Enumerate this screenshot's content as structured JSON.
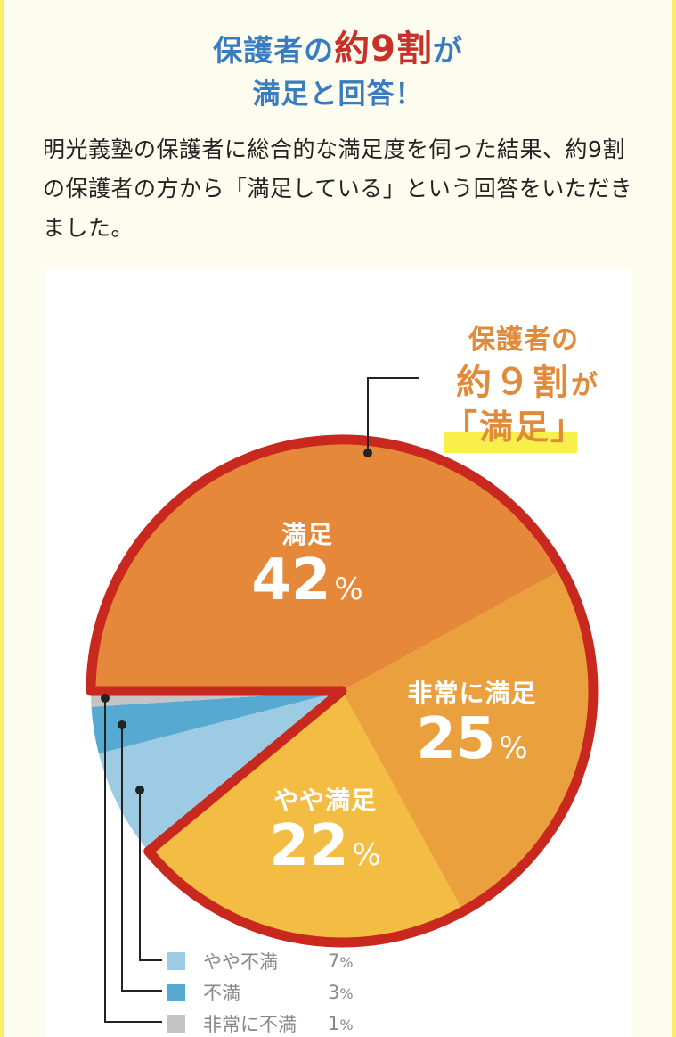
{
  "header": {
    "line1_prefix": "保護者の",
    "line1_accent": "約9割",
    "line1_suffix": "が",
    "line2": "満足と回答！"
  },
  "lead": {
    "text": "明光義塾の保護者に総合的な満足度を伺った結果、約9割の保護者の方から「満足している」という回答をいただきました。"
  },
  "callout": {
    "line1": "保護者の",
    "line2_main": "約９割",
    "line2_suffix": "が",
    "line3": "「満足」"
  },
  "colors": {
    "headline_blue": "#3a7cc0",
    "headline_red": "#c8302a",
    "frame_yellow": "#f8ec6a",
    "background": "#fdfdef",
    "outline_red": "#c8281e",
    "callout_orange": "#e08a3a",
    "highlight_yellow": "#f8ef4a"
  },
  "chart_data": {
    "type": "pie",
    "title": "保護者の約9割が「満足」",
    "start_angle_deg_clockwise_from_top": 270,
    "direction": "clockwise",
    "slices": [
      {
        "label": "満足",
        "value": 42,
        "color": "#e5883a",
        "position": "inside"
      },
      {
        "label": "非常に満足",
        "value": 25,
        "color": "#eaa03c",
        "position": "inside"
      },
      {
        "label": "やや満足",
        "value": 22,
        "color": "#f2bd42",
        "position": "inside"
      },
      {
        "label": "やや不満",
        "value": 7,
        "color": "#9ccbe3",
        "position": "legend"
      },
      {
        "label": "不満",
        "value": 3,
        "color": "#56a9d0",
        "position": "legend"
      },
      {
        "label": "非常に不満",
        "value": 1,
        "color": "#c4c4c4",
        "position": "legend"
      }
    ],
    "highlight_group": [
      "満足",
      "非常に満足",
      "やや満足"
    ],
    "highlight_total": 89,
    "unit": "%"
  },
  "slice_labels": [
    {
      "name": "満足",
      "value": "42",
      "unit": "%"
    },
    {
      "name": "非常に満足",
      "value": "25",
      "unit": "%"
    },
    {
      "name": "やや満足",
      "value": "22",
      "unit": "%"
    }
  ],
  "legend": [
    {
      "name": "やや不満",
      "value": "7",
      "unit": "%",
      "color": "#9ccbe3"
    },
    {
      "name": "不満",
      "value": "3",
      "unit": "%",
      "color": "#56a9d0"
    },
    {
      "name": "非常に不満",
      "value": "1",
      "unit": "%",
      "color": "#c4c4c4"
    }
  ]
}
